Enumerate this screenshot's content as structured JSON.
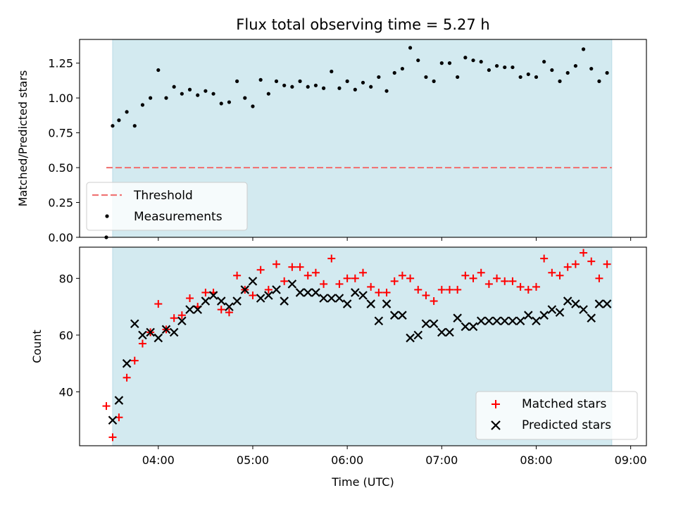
{
  "chart_data": [
    {
      "type": "scatter",
      "title": "Flux total observing time = 5.27 h",
      "xlabel": "",
      "ylabel": "Matched/Predicted stars",
      "ylim": [
        0,
        1.42
      ],
      "yticks": [
        "0.00",
        "0.25",
        "0.50",
        "0.75",
        "1.00",
        "1.25"
      ],
      "yticks_values": [
        0,
        0.25,
        0.5,
        0.75,
        1.0,
        1.25
      ],
      "shaded_span_color": "#d3eaf0",
      "threshold": {
        "name": "Threshold",
        "value": 0.5,
        "x_start": "03:27",
        "x_end": "08:48",
        "color": "#f07575"
      },
      "legend_placement": "lower-left",
      "series": [
        {
          "name": "Measurements",
          "color": "#000000",
          "x": [
            "03:27",
            "03:31",
            "03:35",
            "03:40",
            "03:45",
            "03:50",
            "03:55",
            "04:00",
            "04:05",
            "04:10",
            "04:15",
            "04:20",
            "04:25",
            "04:30",
            "04:35",
            "04:40",
            "04:45",
            "04:50",
            "04:55",
            "05:00",
            "05:05",
            "05:10",
            "05:15",
            "05:20",
            "05:25",
            "05:30",
            "05:35",
            "05:40",
            "05:45",
            "05:50",
            "05:55",
            "06:00",
            "06:05",
            "06:10",
            "06:15",
            "06:20",
            "06:25",
            "06:30",
            "06:35",
            "06:40",
            "06:45",
            "06:50",
            "06:55",
            "07:00",
            "07:05",
            "07:10",
            "07:15",
            "07:20",
            "07:25",
            "07:30",
            "07:35",
            "07:40",
            "07:45",
            "07:50",
            "07:55",
            "08:00",
            "08:05",
            "08:10",
            "08:15",
            "08:20",
            "08:25",
            "08:30",
            "08:35",
            "08:40",
            "08:45"
          ],
          "values": [
            0.0,
            0.8,
            0.84,
            0.9,
            0.8,
            0.95,
            1.0,
            1.2,
            1.0,
            1.08,
            1.03,
            1.06,
            1.02,
            1.05,
            1.03,
            0.96,
            0.97,
            1.12,
            1.0,
            0.94,
            1.13,
            1.03,
            1.12,
            1.09,
            1.08,
            1.12,
            1.08,
            1.09,
            1.07,
            1.19,
            1.07,
            1.12,
            1.06,
            1.11,
            1.08,
            1.15,
            1.05,
            1.18,
            1.21,
            1.36,
            1.27,
            1.15,
            1.12,
            1.25,
            1.25,
            1.15,
            1.29,
            1.27,
            1.26,
            1.2,
            1.23,
            1.22,
            1.22,
            1.15,
            1.17,
            1.15,
            1.26,
            1.2,
            1.12,
            1.18,
            1.23,
            1.35,
            1.21,
            1.12,
            1.18
          ]
        }
      ]
    },
    {
      "type": "scatter",
      "title": "",
      "xlabel": "Time (UTC)",
      "ylabel": "Count",
      "xlim": [
        "03:10",
        "09:10"
      ],
      "ylim": [
        21,
        91
      ],
      "yticks": [
        "40",
        "60",
        "80"
      ],
      "yticks_values": [
        40,
        60,
        80
      ],
      "xticks": [
        "04:00",
        "05:00",
        "06:00",
        "07:00",
        "08:00",
        "09:00"
      ],
      "shaded_span": [
        "03:31",
        "08:48"
      ],
      "shaded_span_color": "#d3eaf0",
      "legend_placement": "lower-right",
      "series": [
        {
          "name": "Matched stars",
          "marker": "+",
          "color": "#ff0000",
          "x": [
            "03:27",
            "03:31",
            "03:35",
            "03:40",
            "03:45",
            "03:50",
            "03:55",
            "04:00",
            "04:05",
            "04:10",
            "04:15",
            "04:20",
            "04:25",
            "04:30",
            "04:35",
            "04:40",
            "04:45",
            "04:50",
            "04:55",
            "05:00",
            "05:05",
            "05:10",
            "05:15",
            "05:20",
            "05:25",
            "05:30",
            "05:35",
            "05:40",
            "05:45",
            "05:50",
            "05:55",
            "06:00",
            "06:05",
            "06:10",
            "06:15",
            "06:20",
            "06:25",
            "06:30",
            "06:35",
            "06:40",
            "06:45",
            "06:50",
            "06:55",
            "07:00",
            "07:05",
            "07:10",
            "07:15",
            "07:20",
            "07:25",
            "07:30",
            "07:35",
            "07:40",
            "07:45",
            "07:50",
            "07:55",
            "08:00",
            "08:05",
            "08:10",
            "08:15",
            "08:20",
            "08:25",
            "08:30",
            "08:35",
            "08:40",
            "08:45"
          ],
          "values": [
            35,
            24,
            31,
            45,
            51,
            57,
            61,
            71,
            62,
            66,
            67,
            73,
            70,
            75,
            75,
            69,
            68,
            81,
            76,
            74,
            83,
            76,
            85,
            79,
            84,
            84,
            81,
            82,
            78,
            87,
            78,
            80,
            80,
            82,
            77,
            75,
            75,
            79,
            81,
            80,
            76,
            74,
            72,
            76,
            76,
            76,
            81,
            80,
            82,
            78,
            80,
            79,
            79,
            77,
            76,
            77,
            87,
            82,
            81,
            84,
            85,
            89,
            86,
            80,
            85
          ]
        },
        {
          "name": "Predicted stars",
          "marker": "x",
          "color": "#000000",
          "x": [
            "03:31",
            "03:35",
            "03:40",
            "03:45",
            "03:50",
            "03:55",
            "04:00",
            "04:05",
            "04:10",
            "04:15",
            "04:20",
            "04:25",
            "04:30",
            "04:35",
            "04:40",
            "04:45",
            "04:50",
            "04:55",
            "05:00",
            "05:05",
            "05:10",
            "05:15",
            "05:20",
            "05:25",
            "05:30",
            "05:35",
            "05:40",
            "05:45",
            "05:50",
            "05:55",
            "06:00",
            "06:05",
            "06:10",
            "06:15",
            "06:20",
            "06:25",
            "06:30",
            "06:35",
            "06:40",
            "06:45",
            "06:50",
            "06:55",
            "07:00",
            "07:05",
            "07:10",
            "07:15",
            "07:20",
            "07:25",
            "07:30",
            "07:35",
            "07:40",
            "07:45",
            "07:50",
            "07:55",
            "08:00",
            "08:05",
            "08:10",
            "08:15",
            "08:20",
            "08:25",
            "08:30",
            "08:35",
            "08:40",
            "08:45"
          ],
          "values": [
            30,
            37,
            50,
            64,
            60,
            61,
            59,
            62,
            61,
            65,
            69,
            69,
            72,
            74,
            72,
            70,
            72,
            76,
            79,
            73,
            74,
            76,
            72,
            78,
            75,
            75,
            75,
            73,
            73,
            73,
            71,
            75,
            74,
            71,
            65,
            71,
            67,
            67,
            59,
            60,
            64,
            64,
            61,
            61,
            66,
            63,
            63,
            65,
            65,
            65,
            65,
            65,
            65,
            67,
            65,
            67,
            69,
            68,
            72,
            71,
            69,
            66,
            71,
            71
          ]
        }
      ]
    }
  ]
}
